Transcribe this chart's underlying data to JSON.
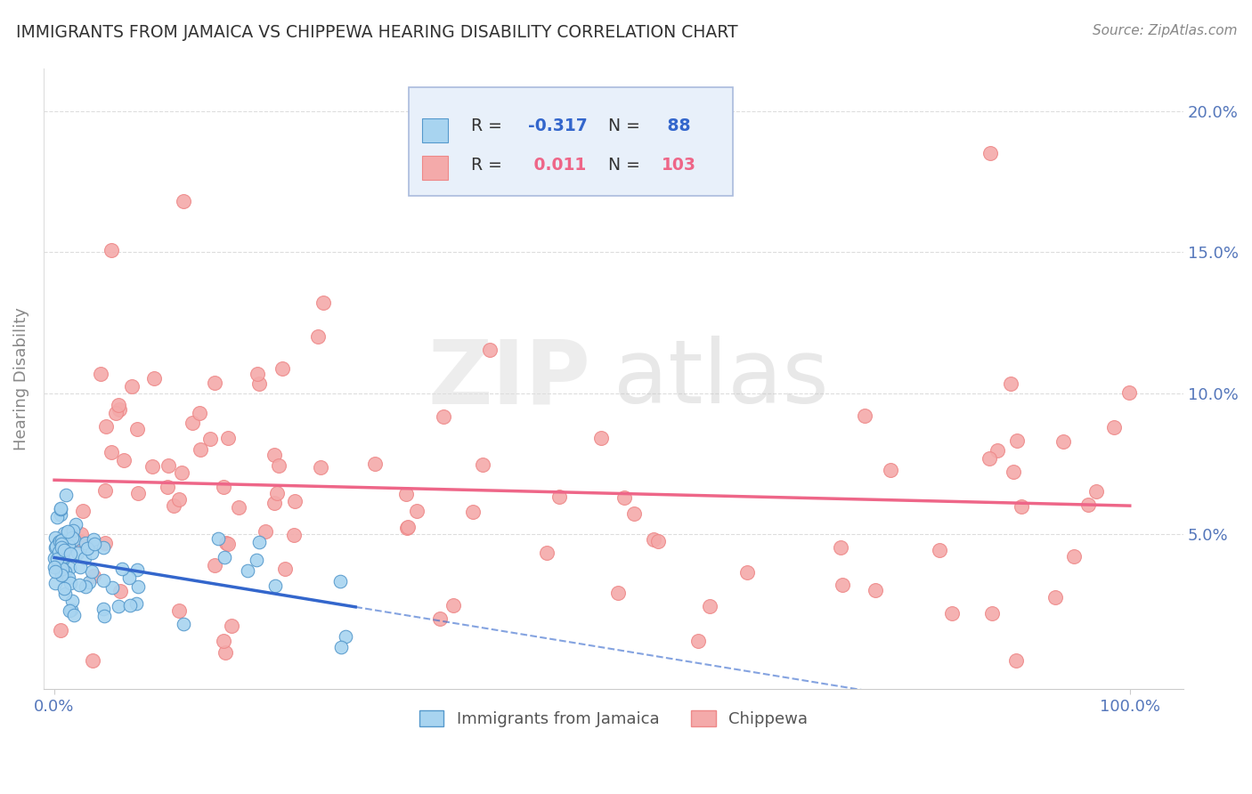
{
  "title": "IMMIGRANTS FROM JAMAICA VS CHIPPEWA HEARING DISABILITY CORRELATION CHART",
  "source": "Source: ZipAtlas.com",
  "ylabel": "Hearing Disability",
  "xlim": [
    -0.01,
    1.05
  ],
  "ylim": [
    -0.005,
    0.215
  ],
  "xtick_vals": [
    0.0,
    1.0
  ],
  "xtick_labels": [
    "0.0%",
    "100.0%"
  ],
  "ytick_vals": [
    0.05,
    0.1,
    0.15,
    0.2
  ],
  "ytick_labels": [
    "5.0%",
    "10.0%",
    "15.0%",
    "20.0%"
  ],
  "color_blue_fill": "#A8D4F0",
  "color_blue_edge": "#5599CC",
  "color_pink_fill": "#F4AAAA",
  "color_pink_edge": "#EE8888",
  "trend_blue_color": "#3366CC",
  "trend_pink_color": "#EE6688",
  "legend_box_fill": "#E8F0FA",
  "legend_box_edge": "#AABBDD",
  "r1_val": "-0.317",
  "n1_val": "88",
  "r2_val": "0.011",
  "n2_val": "103",
  "color_r1": "#3366CC",
  "color_n1": "#3366CC",
  "color_r2": "#EE6688",
  "color_n2": "#EE6688",
  "watermark_zip_color": "#DDDDDD",
  "watermark_atlas_color": "#CCCCCC",
  "bg_color": "#FFFFFF",
  "grid_color": "#DDDDDD",
  "title_color": "#333333",
  "ylabel_color": "#888888",
  "tick_color": "#5577BB",
  "source_color": "#888888"
}
